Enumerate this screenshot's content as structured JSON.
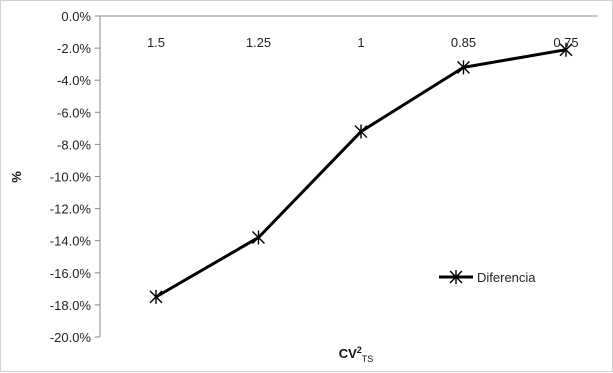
{
  "chart_data": {
    "type": "line",
    "categories": [
      "1.5",
      "1.25",
      "1",
      "0.85",
      "0.75"
    ],
    "series": [
      {
        "name": "Diferencia",
        "values": [
          -17.5,
          -13.8,
          -7.2,
          -3.2,
          -2.1
        ],
        "color": "#000000"
      }
    ],
    "ylabel": "%",
    "xlabel": {
      "main": "CV",
      "sup": "2",
      "sub": "TS"
    },
    "ylim": [
      -20,
      0
    ],
    "ytick_step": 2,
    "ytick_format": "percent_1dp",
    "grid": false,
    "legend_position": "right",
    "marker": "asterisk",
    "x_axis_position": "top"
  }
}
